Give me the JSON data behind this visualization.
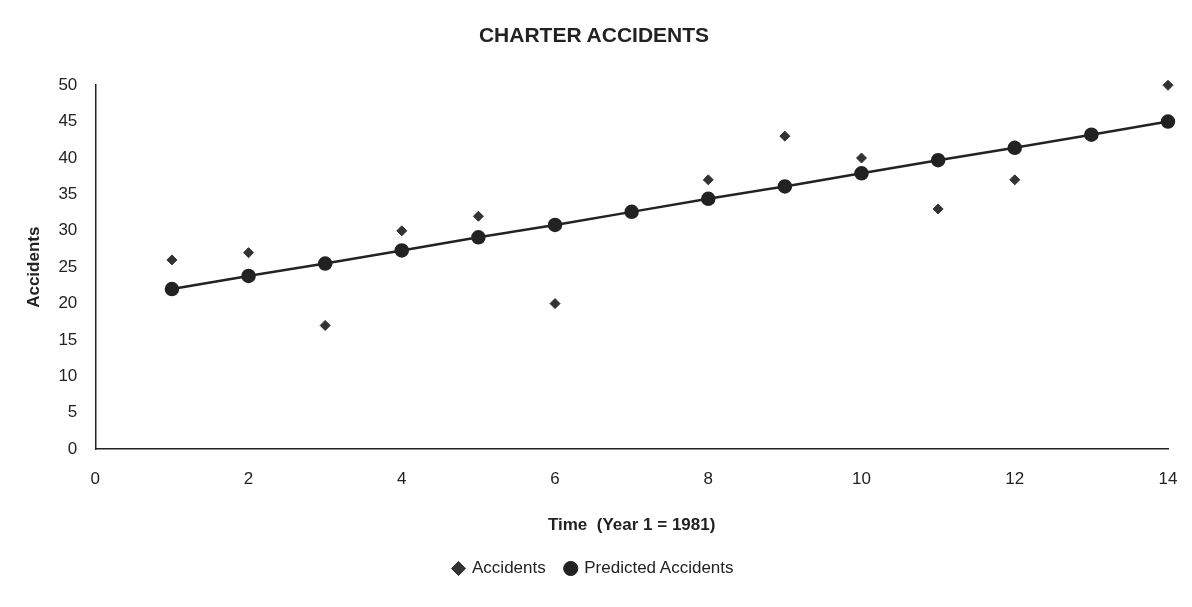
{
  "chart_data": {
    "type": "scatter",
    "title": "CHARTER ACCIDENTS",
    "xlabel": "Time  (Year 1 = 1981)",
    "ylabel": "Accidents",
    "x": [
      1,
      2,
      3,
      4,
      5,
      6,
      7,
      8,
      9,
      10,
      11,
      12,
      13,
      14
    ],
    "series": [
      {
        "name": "Accidents",
        "marker": "diamond",
        "color": "#333333",
        "values": [
          26,
          27,
          17,
          30,
          32,
          20,
          null,
          37,
          43,
          40,
          33,
          37,
          null,
          50
        ]
      },
      {
        "name": "Predicted Accidents",
        "type": "line",
        "marker": "circle",
        "color": "#222222",
        "values": [
          22,
          23.8,
          25.5,
          27.3,
          29.1,
          30.8,
          32.6,
          34.4,
          36.1,
          37.9,
          39.7,
          41.4,
          43.2,
          45
        ]
      }
    ],
    "xlim": [
      0,
      14
    ],
    "xticks": [
      0,
      2,
      4,
      6,
      8,
      10,
      12,
      14
    ],
    "ylim": [
      0,
      50
    ],
    "yticks": [
      0,
      5,
      10,
      15,
      20,
      25,
      30,
      35,
      40,
      45,
      50
    ],
    "grid": false,
    "legend": "bottom"
  }
}
